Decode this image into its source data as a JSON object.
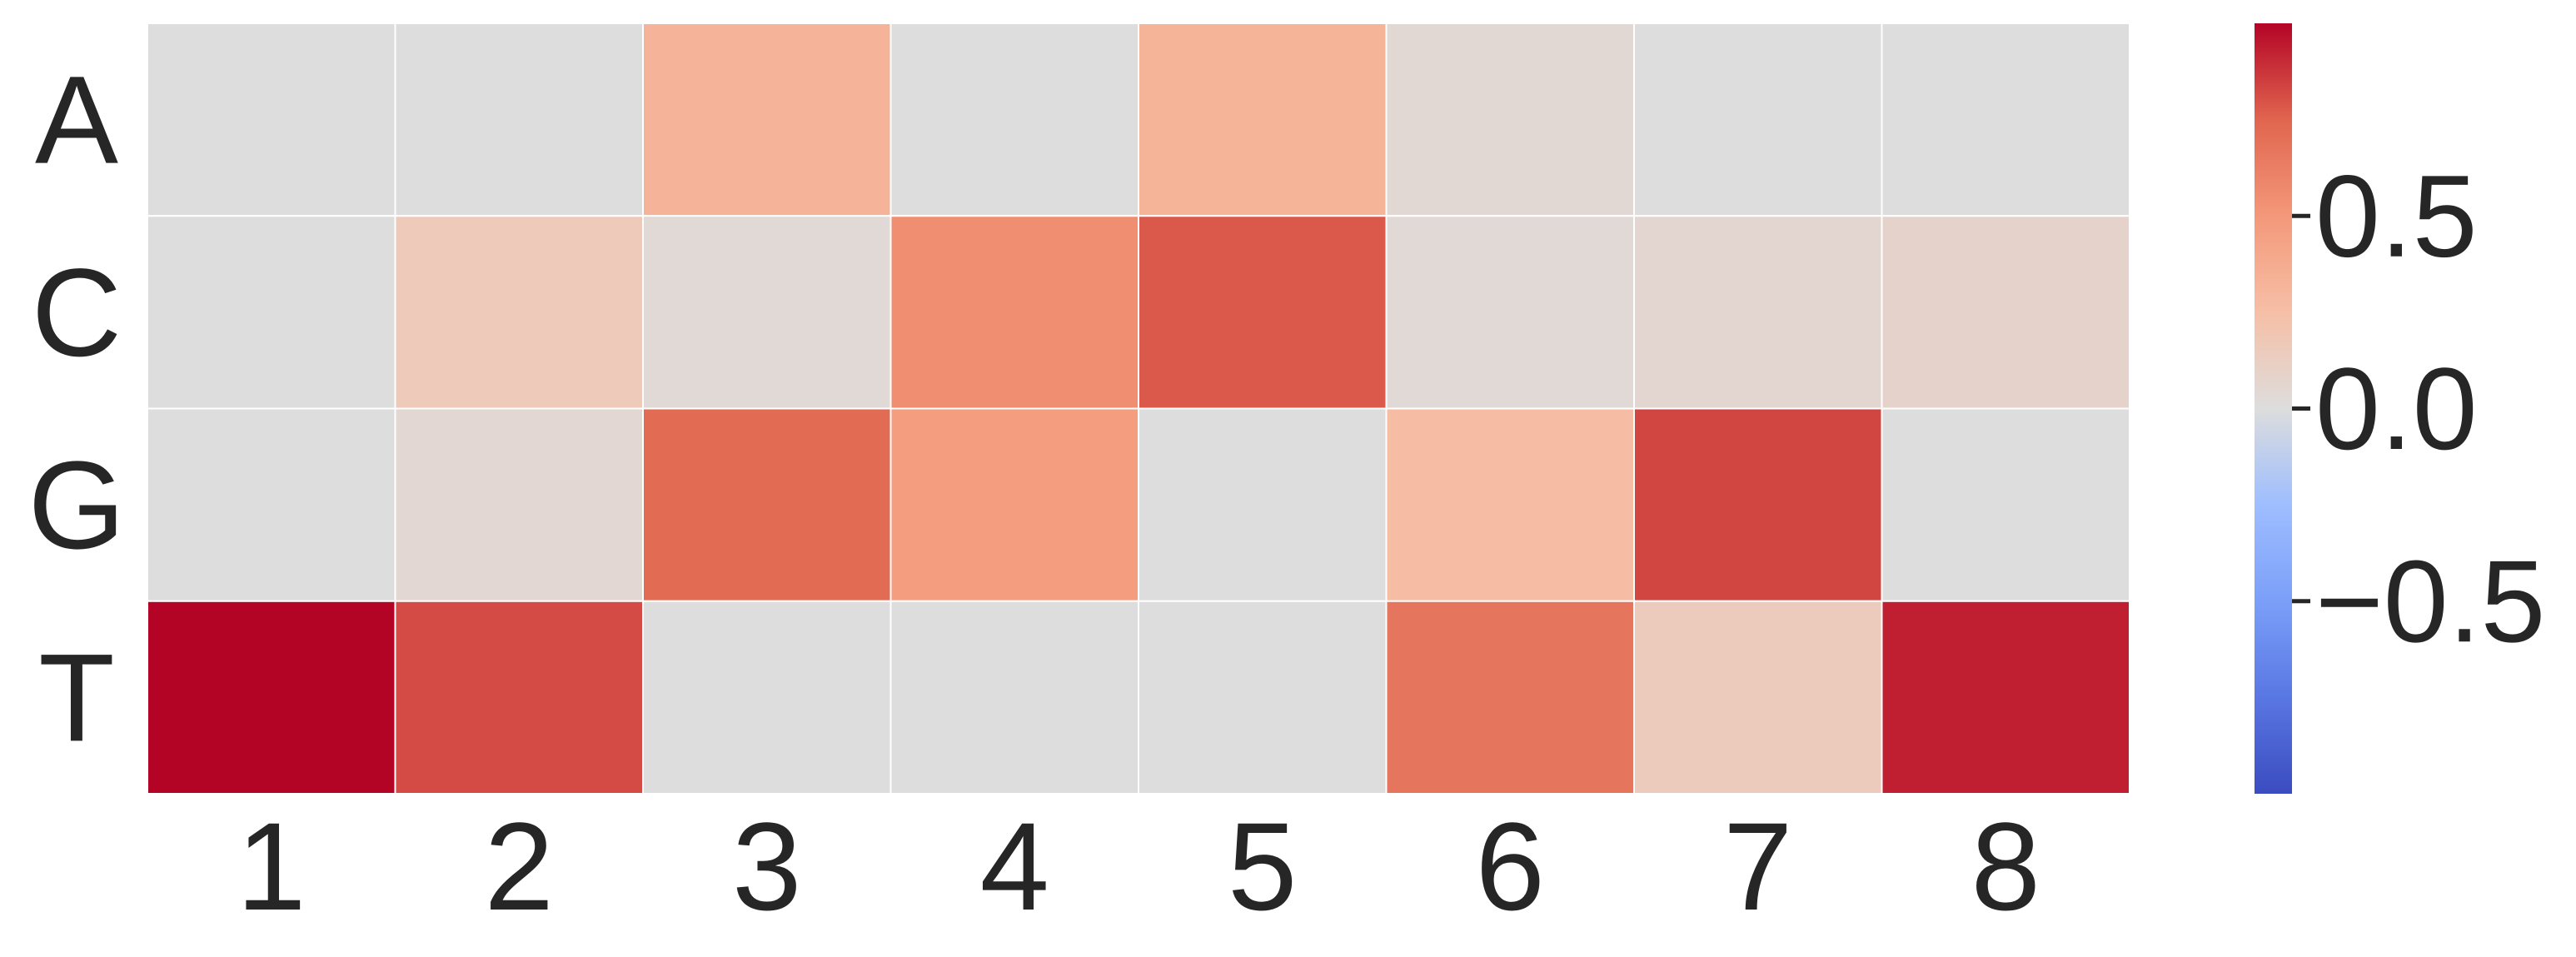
{
  "chart_data": {
    "type": "heatmap",
    "x_categories": [
      "1",
      "2",
      "3",
      "4",
      "5",
      "6",
      "7",
      "8"
    ],
    "y_categories": [
      "A",
      "C",
      "G",
      "T"
    ],
    "values": [
      [
        0.0,
        0.0,
        0.32,
        0.0,
        0.33,
        0.04,
        0.0,
        0.0
      ],
      [
        0.0,
        0.16,
        0.03,
        0.55,
        0.78,
        0.03,
        0.06,
        0.08
      ],
      [
        0.0,
        0.05,
        0.72,
        0.47,
        0.0,
        0.26,
        0.83,
        0.0
      ],
      [
        1.0,
        0.82,
        0.0,
        0.0,
        0.0,
        0.67,
        0.15,
        0.93
      ]
    ],
    "colormap": "coolwarm",
    "vmin": -1.0,
    "vmax": 1.0,
    "colorbar": {
      "ticks": [
        -0.5,
        0.0,
        0.5
      ],
      "tick_labels": [
        "−0.5",
        "0.0",
        "0.5"
      ]
    },
    "colors": {
      "low": "#3b4cc0",
      "mid": "#dddddd",
      "high": "#b40426",
      "text": "#262626",
      "cell_border": "#ffffff"
    },
    "title": "",
    "xlabel": "",
    "ylabel": ""
  }
}
